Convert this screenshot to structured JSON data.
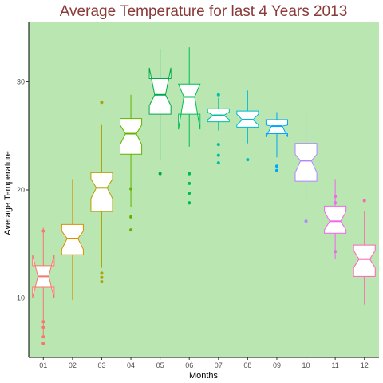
{
  "chart_data": {
    "type": "boxplot",
    "title": "Average Temperature for last 4 Years 2013",
    "xlabel": "Months",
    "ylabel": "Average Temperature",
    "ylim": [
      4.5,
      35.5
    ],
    "yticks": [
      10,
      20,
      30
    ],
    "panel_background": "#b9e6b1",
    "grid": false,
    "categories": [
      "01",
      "02",
      "03",
      "04",
      "05",
      "06",
      "07",
      "08",
      "09",
      "10",
      "11",
      "12"
    ],
    "series": [
      {
        "color": "#f8766d",
        "box_outer": [
          11.0,
          13.0
        ],
        "median": 12.0,
        "notch": [
          10.0,
          14.0
        ],
        "whiskers": [
          6.5,
          16.5
        ],
        "outliers": [
          5.8,
          5.8,
          6.4,
          7.3,
          7.8,
          16.2
        ]
      },
      {
        "color": "#db8e00",
        "box_outer": [
          14.0,
          16.8
        ],
        "median": 15.5,
        "notch": [
          14.5,
          16.2
        ],
        "whiskers": [
          9.8,
          21.0
        ],
        "outliers": []
      },
      {
        "color": "#aea200",
        "box_outer": [
          18.0,
          21.6
        ],
        "median": 20.2,
        "notch": [
          19.2,
          21.0
        ],
        "whiskers": [
          12.8,
          26.0
        ],
        "outliers": [
          11.5,
          11.9,
          12.3,
          28.1
        ]
      },
      {
        "color": "#64b200",
        "box_outer": [
          23.3,
          26.6
        ],
        "median": 25.2,
        "notch": [
          24.2,
          26.0
        ],
        "whiskers": [
          18.4,
          28.8
        ],
        "outliers": [
          16.3,
          17.5,
          20.1
        ]
      },
      {
        "color": "#00a84a",
        "box_outer": [
          27.0,
          30.3
        ],
        "median": 28.8,
        "notch": [
          27.8,
          31.3
        ],
        "whiskers": [
          22.8,
          33.0
        ],
        "outliers": [
          21.5
        ]
      },
      {
        "color": "#00bc56",
        "box_outer": [
          27.0,
          29.8
        ],
        "median": 28.6,
        "notch": [
          25.6,
          29.8
        ],
        "whiskers": [
          24.0,
          33.2
        ],
        "outliers": [
          18.8,
          18.8,
          19.7,
          20.6,
          21.5,
          21.5
        ]
      },
      {
        "color": "#00bfa5",
        "box_outer": [
          26.3,
          27.5
        ],
        "median": 26.9,
        "notch": [
          26.5,
          27.2
        ],
        "whiskers": [
          25.5,
          28.5
        ],
        "outliers": [
          22.5,
          23.2,
          24.2,
          28.8
        ]
      },
      {
        "color": "#00b7d8",
        "box_outer": [
          25.8,
          27.3
        ],
        "median": 26.5,
        "notch": [
          26.0,
          27.0
        ],
        "whiskers": [
          24.3,
          29.2
        ],
        "outliers": [
          22.8
        ]
      },
      {
        "color": "#00a5ff",
        "box_outer": [
          25.2,
          26.5
        ],
        "median": 25.9,
        "notch": [
          24.9,
          26.0
        ],
        "whiskers": [
          23.0,
          27.2
        ],
        "outliers": [
          21.8,
          22.2
        ]
      },
      {
        "color": "#b385ff",
        "box_outer": [
          20.8,
          24.3
        ],
        "median": 22.7,
        "notch": [
          21.6,
          23.3
        ],
        "whiskers": [
          18.8,
          27.2
        ],
        "outliers": [
          17.1
        ]
      },
      {
        "color": "#ef67eb",
        "box_outer": [
          16.0,
          18.5
        ],
        "median": 17.1,
        "notch": [
          16.3,
          18.0
        ],
        "whiskers": [
          13.6,
          21.0
        ],
        "outliers": [
          14.3,
          18.8,
          19.4
        ]
      },
      {
        "color": "#ff63b6",
        "box_outer": [
          12.0,
          14.9
        ],
        "median": 13.6,
        "notch": [
          12.8,
          14.4
        ],
        "whiskers": [
          9.4,
          18.0
        ],
        "outliers": [
          19.0
        ]
      }
    ]
  }
}
